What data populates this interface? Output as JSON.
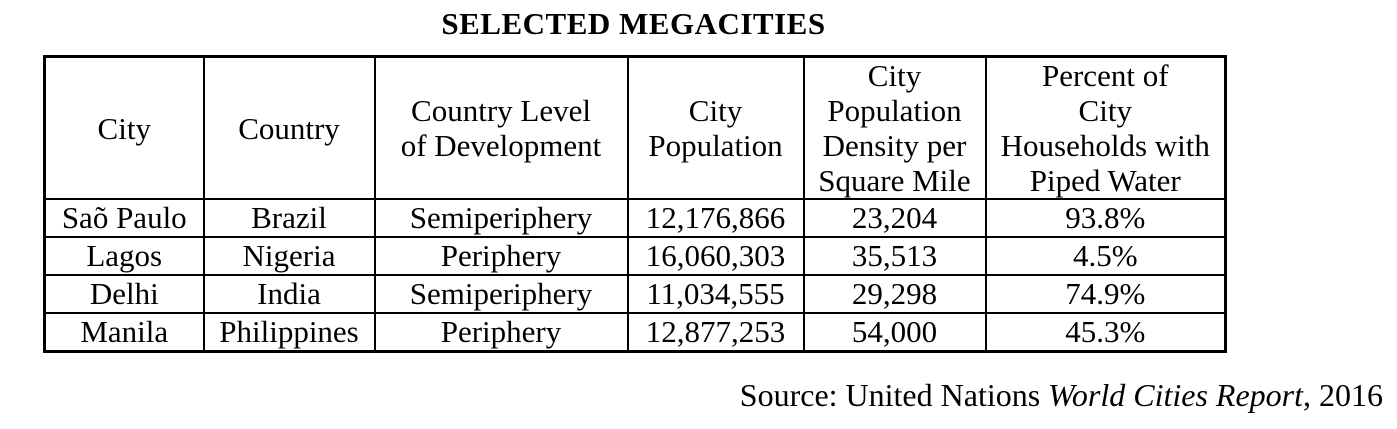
{
  "title": "SELECTED MEGACITIES",
  "table": {
    "columns": [
      "City",
      "Country",
      "Country Level\nof Development",
      "City\nPopulation",
      "City\nPopulation\nDensity per\nSquare Mile",
      "Percent of\nCity\nHouseholds with\nPiped Water"
    ],
    "rows": [
      [
        "Saõ Paulo",
        "Brazil",
        "Semiperiphery",
        "12,176,866",
        "23,204",
        "93.8%"
      ],
      [
        "Lagos",
        "Nigeria",
        "Periphery",
        "16,060,303",
        "35,513",
        "4.5%"
      ],
      [
        "Delhi",
        "India",
        "Semiperiphery",
        "11,034,555",
        "29,298",
        "74.9%"
      ],
      [
        "Manila",
        "Philippines",
        "Periphery",
        "12,877,253",
        "54,000",
        "45.3%"
      ]
    ]
  },
  "source": {
    "prefix": "Source: United Nations ",
    "italic_title": "World Cities Report",
    "suffix": ", 2016"
  }
}
